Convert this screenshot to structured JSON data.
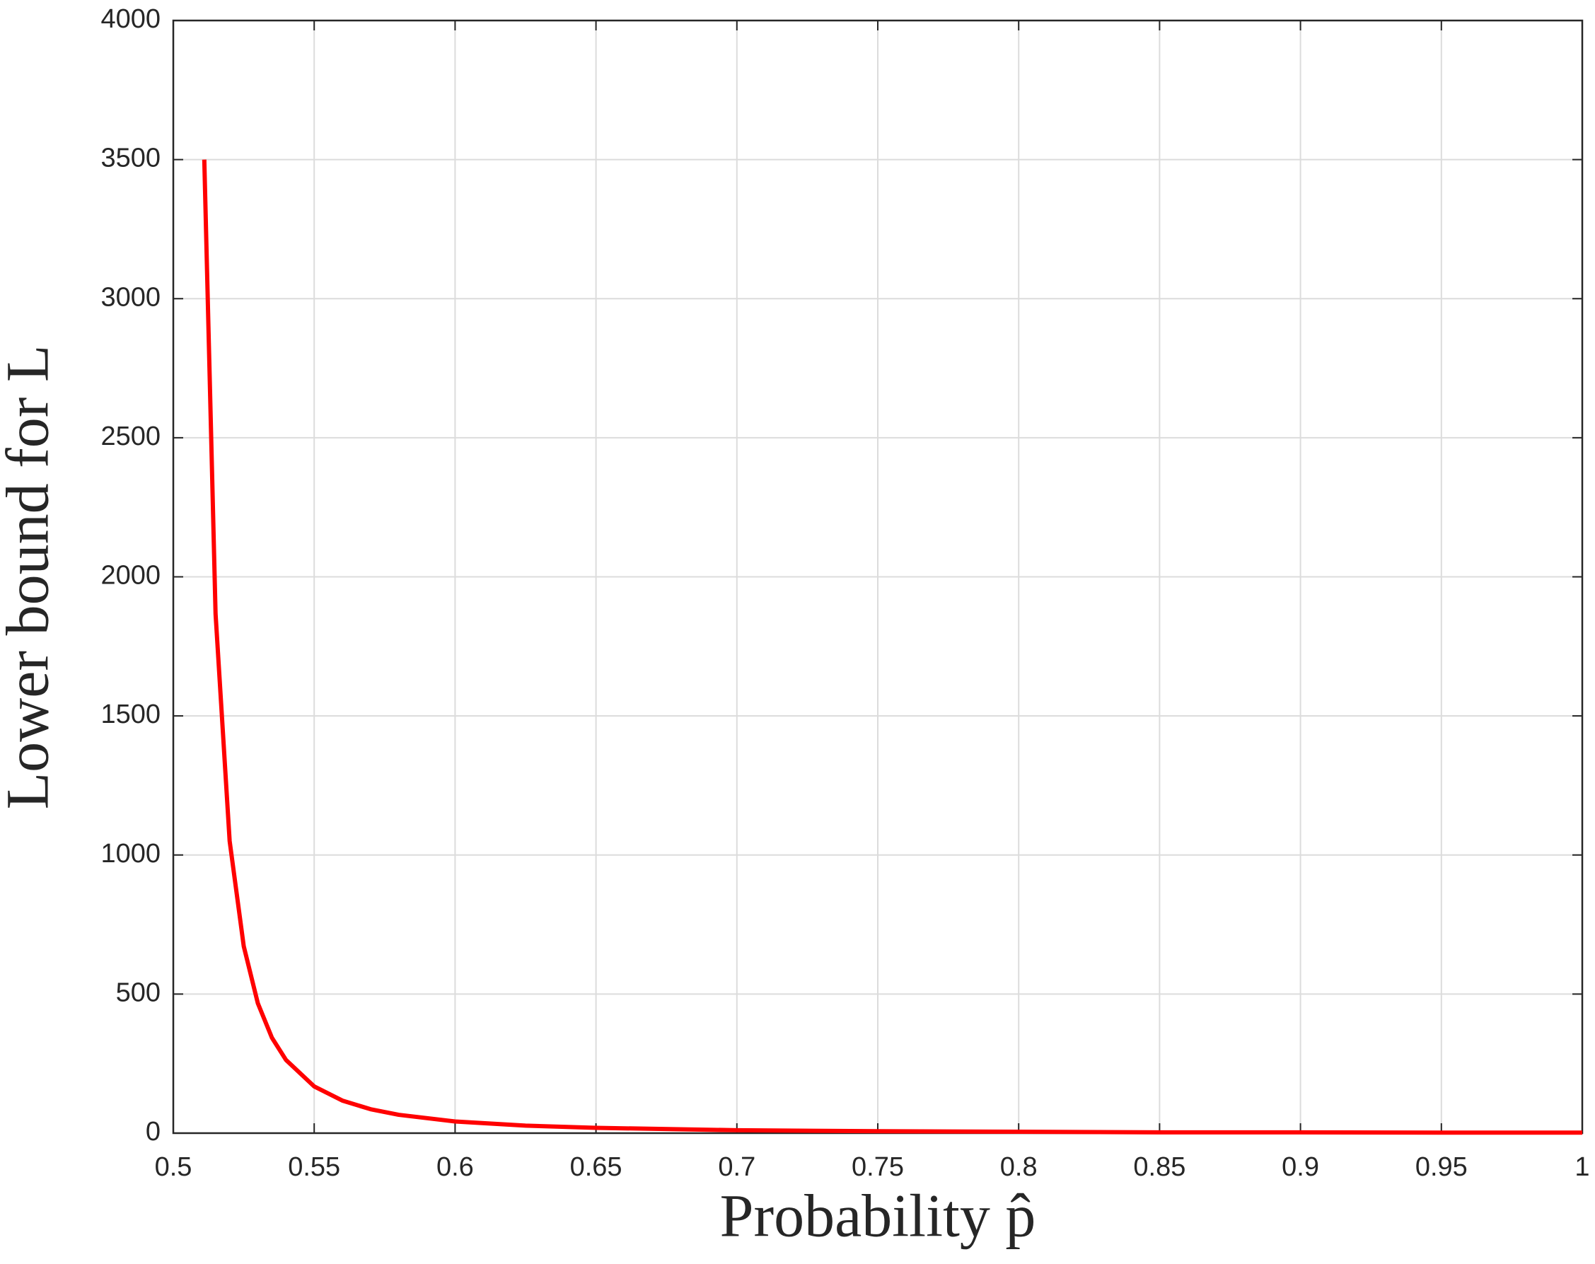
{
  "chart_data": {
    "type": "line",
    "xlabel": "Probability p̂",
    "ylabel": "Lower bound for L",
    "x": [
      0.511,
      0.515,
      0.52,
      0.525,
      0.53,
      0.535,
      0.54,
      0.55,
      0.56,
      0.57,
      0.58,
      0.6,
      0.625,
      0.65,
      0.7,
      0.75,
      0.8,
      0.85,
      0.9,
      0.95,
      1
    ],
    "series": [
      {
        "color": "#ff0000",
        "values": [
          3500,
          1867,
          1050,
          672,
          467,
          343,
          263,
          168,
          117,
          86,
          66,
          42,
          27,
          19,
          10.5,
          7,
          5,
          3,
          3,
          2,
          2
        ]
      }
    ],
    "xlim": [
      0.5,
      1
    ],
    "xticks": [
      0.5,
      0.55,
      0.6,
      0.65,
      0.7,
      0.75,
      0.8,
      0.85,
      0.9,
      0.95,
      1
    ],
    "ylim": [
      0,
      4000
    ],
    "yticks": [
      0,
      500,
      1000,
      1500,
      2000,
      2500,
      3000,
      3500,
      4000
    ],
    "grid": true
  }
}
